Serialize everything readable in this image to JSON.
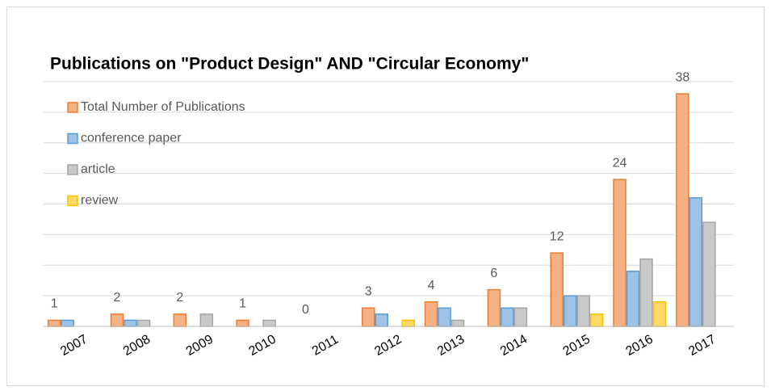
{
  "chart_data": {
    "type": "bar",
    "title": "Publications on \"Product Design\" AND \"Circular Economy\"",
    "categories": [
      "2007",
      "2008",
      "2009",
      "2010",
      "2011",
      "2012",
      "2013",
      "2014",
      "2015",
      "2016",
      "2017"
    ],
    "series": [
      {
        "name": "Total Number of Publications",
        "color": "#f4b183",
        "edge": "#ed7d31",
        "data_labels": true,
        "values": [
          1,
          2,
          2,
          1,
          0,
          3,
          4,
          6,
          12,
          24,
          38
        ]
      },
      {
        "name": "conference paper",
        "color": "#9dc3e6",
        "edge": "#5b9bd5",
        "data_labels": false,
        "values": [
          1,
          1,
          0,
          0,
          0,
          2,
          3,
          3,
          5,
          9,
          21
        ]
      },
      {
        "name": "article",
        "color": "#c9c9c9",
        "edge": "#a5a5a5",
        "data_labels": false,
        "values": [
          0,
          1,
          2,
          1,
          0,
          0,
          1,
          3,
          5,
          11,
          17
        ]
      },
      {
        "name": "review",
        "color": "#ffd966",
        "edge": "#ffc000",
        "data_labels": false,
        "values": [
          0,
          0,
          0,
          0,
          0,
          1,
          0,
          0,
          2,
          4,
          0
        ]
      }
    ],
    "ylim": [
      0,
      40
    ],
    "yticks": [
      0,
      5,
      10,
      15,
      20,
      25,
      30,
      35,
      40
    ],
    "grid": true,
    "legend": "upper left"
  }
}
